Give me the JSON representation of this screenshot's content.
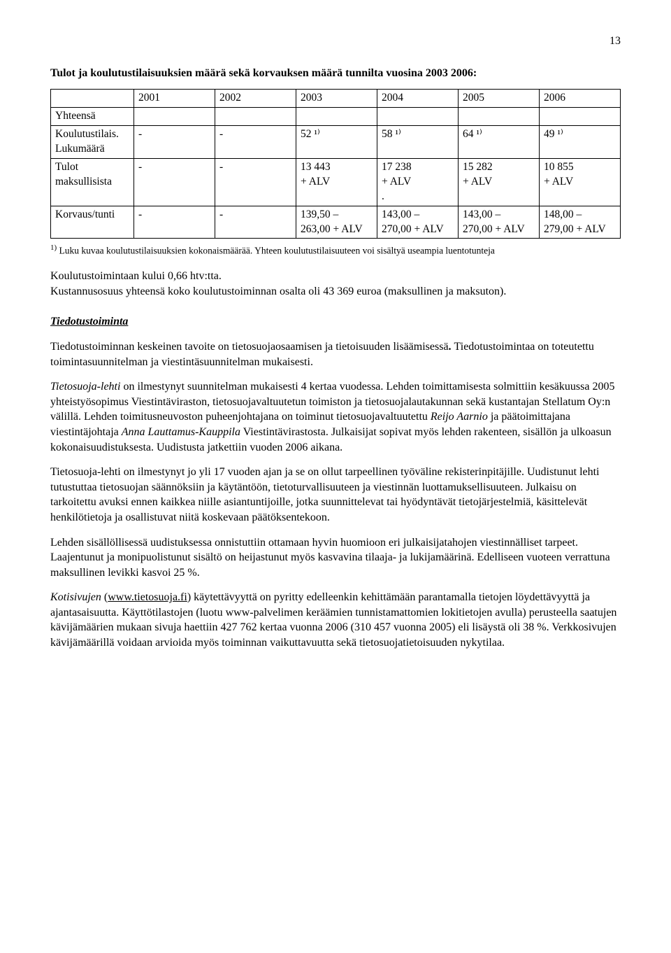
{
  "page_number": "13",
  "title": "Tulot ja koulutustilaisuuksien määrä sekä korvauksen määrä tunnilta vuosina 2003 2006:",
  "table": {
    "type": "table",
    "columns": [
      "",
      "2001",
      "2002",
      "2003",
      "2004",
      "2005",
      "2006"
    ],
    "rows": [
      {
        "label": "Yhteensä",
        "c": [
          "",
          "",
          "",
          "",
          "",
          ""
        ]
      },
      {
        "label": "Koulutustilais. Lukumäärä",
        "c": [
          "-",
          "-",
          "52 ¹⁾",
          "58 ¹⁾",
          "64 ¹⁾",
          "49 ¹⁾"
        ]
      },
      {
        "label": "Tulot maksullisista",
        "c": [
          "-",
          "-",
          "13 443\n+ ALV",
          "17 238\n+ ALV\n.",
          "15 282\n+ ALV",
          "10 855\n+ ALV"
        ]
      },
      {
        "label": "Korvaus/tunti",
        "c": [
          "-",
          "-",
          "139,50 –\n263,00 + ALV",
          "143,00 –\n270,00 + ALV",
          "143,00 –\n270,00 + ALV",
          "148,00 –\n279,00 + ALV"
        ]
      }
    ],
    "border_color": "#000000",
    "background_color": "#ffffff",
    "font_size": 15.5
  },
  "footnote_marker": "1)",
  "footnote_text": "Luku kuvaa koulutustilaisuuksien kokonaismäärää. Yhteen koulutustilaisuuteen voi sisältyä useampia luentotunteja",
  "p_koulutus_1": "Koulutustoimintaan kului 0,66 htv:tta.",
  "p_koulutus_2": "Kustannusosuus yhteensä koko koulutustoiminnan osalta oli 43 369 euroa (maksullinen ja maksuton).",
  "subheading": "Tiedotustoiminta",
  "p_tiedotus_1a": "Tiedotustoiminnan keskeinen tavoite on tietosuojaosaamisen ja tietoisuuden lisäämisessä",
  "p_tiedotus_1b": ". ",
  "p_tiedotus_1c": "Tiedotustoimintaa on toteutettu toimintasuunnitelman ja viestintäsuunnitelman mukaisesti.",
  "p_tiedotus_2_lead": "Tietosuoja-lehti",
  "p_tiedotus_2_rest": " on ilmestynyt suunnitelman mukaisesti 4 kertaa vuodessa. Lehden toimittamisesta solmittiin kesäkuussa 2005 yhteistyösopimus Viestintäviraston, tietosuojavaltuutetun toimiston ja tietosuojalautakunnan sekä kustantajan Stellatum Oy:n välillä. Lehden toimitusneuvoston puheenjohtajana on toiminut tietosuojavaltuutettu ",
  "p_tiedotus_2_name1": "Reijo Aarnio",
  "p_tiedotus_2_mid": " ja päätoimittajana viestintäjohtaja ",
  "p_tiedotus_2_name2": "Anna Lauttamus-Kauppila",
  "p_tiedotus_2_end": " Viestintävirastosta. Julkaisijat sopivat myös lehden rakenteen, sisällön ja ulkoasun kokonaisuudistuksesta. Uudistusta jatkettiin vuoden 2006 aikana.",
  "p_tiedotus_3": "Tietosuoja-lehti on ilmestynyt jo yli 17 vuoden ajan ja se on ollut tarpeellinen työväline rekisterinpitäjille. Uudistunut lehti tutustuttaa tietosuojan säännöksiin ja käytäntöön, tietoturvallisuuteen ja viestinnän luottamuksellisuuteen. Julkaisu on tarkoitettu avuksi ennen kaikkea niille asiantuntijoille, jotka suunnittelevat tai hyödyntävät tietojärjestelmiä, käsittelevät henkilötietoja ja osallistuvat niitä koskevaan päätöksentekoon.",
  "p_tiedotus_4": "Lehden sisällöllisessä uudistuksessa onnistuttiin ottamaan hyvin huomioon eri julkaisijatahojen viestinnälliset tarpeet. Laajentunut ja monipuolistunut sisältö on heijastunut myös kasvavina tilaaja- ja lukijamäärinä. Edelliseen vuoteen verrattuna maksullinen levikki kasvoi 25 %.",
  "p_kotisivut_lead": "Kotisivujen",
  "p_kotisivut_paren_open": " (",
  "p_kotisivut_link": "www.tietosuoja.fi",
  "p_kotisivut_paren_close": ") ",
  "p_kotisivut_rest": "käytettävyyttä on pyritty edelleenkin kehittämään parantamalla tietojen löydettävyyttä ja ajantasaisuutta. Käyttötilastojen (luotu www-palvelimen keräämien tunnistamattomien lokitietojen avulla) perusteella saatujen kävijämäärien mukaan sivuja haettiin 427 762 kertaa vuonna 2006 (310 457 vuonna 2005) eli lisäystä oli 38 %. Verkkosivujen kävijämäärillä voidaan arvioida myös toiminnan vaikuttavuutta sekä tietosuojatietoisuuden nykytilaa."
}
